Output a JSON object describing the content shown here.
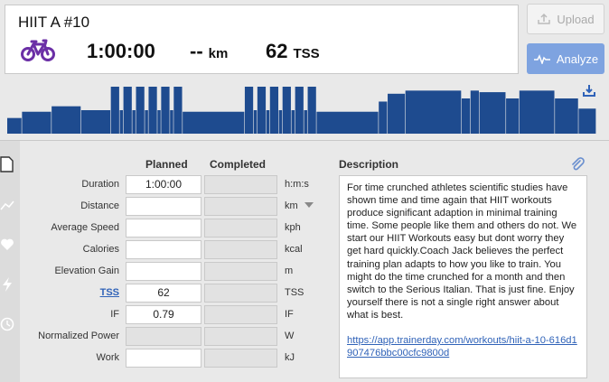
{
  "header": {
    "title": "HIIT A #10",
    "sport_icon": "bike-icon",
    "duration": "1:00:00",
    "distance_value": "--",
    "distance_unit": "km",
    "tss_value": "62",
    "tss_unit": "TSS"
  },
  "buttons": {
    "upload_label": "Upload",
    "analyze_label": "Analyze"
  },
  "colors": {
    "accent": "#7ea3e0",
    "bar": "#1e4b8f",
    "sport": "#6b2fa6",
    "link": "#2f62b8"
  },
  "workout_profile": {
    "intervals": [
      {
        "dur": 1.0,
        "level": 0.2
      },
      {
        "dur": 2.0,
        "level": 0.28
      },
      {
        "dur": 2.0,
        "level": 0.35
      },
      {
        "dur": 2.0,
        "level": 0.3
      },
      {
        "dur": 0.6,
        "level": 0.6
      },
      {
        "dur": 0.25,
        "level": 0.3
      },
      {
        "dur": 0.6,
        "level": 0.6
      },
      {
        "dur": 0.25,
        "level": 0.3
      },
      {
        "dur": 0.6,
        "level": 0.6
      },
      {
        "dur": 0.25,
        "level": 0.3
      },
      {
        "dur": 0.6,
        "level": 0.6
      },
      {
        "dur": 0.25,
        "level": 0.3
      },
      {
        "dur": 0.6,
        "level": 0.6
      },
      {
        "dur": 0.25,
        "level": 0.3
      },
      {
        "dur": 0.6,
        "level": 0.6
      },
      {
        "dur": 4.2,
        "level": 0.28
      },
      {
        "dur": 0.6,
        "level": 0.6
      },
      {
        "dur": 0.25,
        "level": 0.3
      },
      {
        "dur": 0.6,
        "level": 0.6
      },
      {
        "dur": 0.25,
        "level": 0.3
      },
      {
        "dur": 0.6,
        "level": 0.6
      },
      {
        "dur": 0.25,
        "level": 0.3
      },
      {
        "dur": 0.6,
        "level": 0.6
      },
      {
        "dur": 0.25,
        "level": 0.3
      },
      {
        "dur": 0.6,
        "level": 0.6
      },
      {
        "dur": 0.25,
        "level": 0.3
      },
      {
        "dur": 0.6,
        "level": 0.6
      },
      {
        "dur": 4.2,
        "level": 0.28
      },
      {
        "dur": 0.6,
        "level": 0.41
      },
      {
        "dur": 1.2,
        "level": 0.51
      },
      {
        "dur": 3.8,
        "level": 0.55
      },
      {
        "dur": 0.6,
        "level": 0.45
      },
      {
        "dur": 0.6,
        "level": 0.55
      },
      {
        "dur": 1.8,
        "level": 0.53
      },
      {
        "dur": 0.9,
        "level": 0.45
      },
      {
        "dur": 2.4,
        "level": 0.55
      },
      {
        "dur": 1.6,
        "level": 0.45
      },
      {
        "dur": 1.2,
        "level": 0.32
      }
    ]
  },
  "form": {
    "col_planned": "Planned",
    "col_completed": "Completed",
    "rows": [
      {
        "label": "Duration",
        "planned": "1:00:00",
        "unit": "h:m:s"
      },
      {
        "label": "Distance",
        "planned": "",
        "unit": "km"
      },
      {
        "label": "Average Speed",
        "planned": "",
        "unit": "kph"
      },
      {
        "label": "Calories",
        "planned": "",
        "unit": "kcal"
      },
      {
        "label": "Elevation Gain",
        "planned": "",
        "unit": "m"
      },
      {
        "label": "TSS",
        "planned": "62",
        "unit": "TSS"
      },
      {
        "label": "IF",
        "planned": "0.79",
        "unit": "IF"
      },
      {
        "label": "Normalized Power",
        "planned": "",
        "unit": "W"
      },
      {
        "label": "Work",
        "planned": "",
        "unit": "kJ"
      }
    ]
  },
  "description": {
    "title": "Description",
    "text": "For time crunched athletes scientific studies have shown time and time again that HIIT workouts produce significant adaption in minimal training time. Some people like them and others do not. We start our HIIT Workouts easy but dont worry they get hard quickly.Coach Jack believes the perfect training plan adapts to how you like to train. You might do the time crunched for a month and then switch to the Serious Italian. That is just fine. Enjoy yourself there is not a single right answer about what is best.",
    "link": "https://app.trainerday.com/workouts/hiit-a-10-616d1907476bbc00cfc9800d"
  },
  "rail_icons": [
    "document-icon",
    "chart-icon",
    "heart-icon",
    "lightning-icon",
    "clock-icon"
  ]
}
